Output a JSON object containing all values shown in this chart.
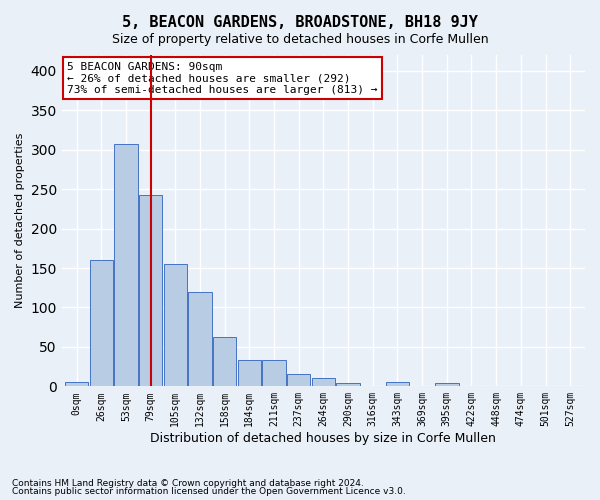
{
  "title": "5, BEACON GARDENS, BROADSTONE, BH18 9JY",
  "subtitle": "Size of property relative to detached houses in Corfe Mullen",
  "xlabel": "Distribution of detached houses by size in Corfe Mullen",
  "ylabel": "Number of detached properties",
  "footnote1": "Contains HM Land Registry data © Crown copyright and database right 2024.",
  "footnote2": "Contains public sector information licensed under the Open Government Licence v3.0.",
  "bin_labels": [
    "0sqm",
    "26sqm",
    "53sqm",
    "79sqm",
    "105sqm",
    "132sqm",
    "158sqm",
    "184sqm",
    "211sqm",
    "237sqm",
    "264sqm",
    "290sqm",
    "316sqm",
    "343sqm",
    "369sqm",
    "395sqm",
    "422sqm",
    "448sqm",
    "474sqm",
    "501sqm",
    "527sqm"
  ],
  "bar_values": [
    5,
    160,
    307,
    243,
    155,
    120,
    63,
    33,
    33,
    16,
    10,
    4,
    0,
    5,
    0,
    4,
    0,
    0,
    0,
    0,
    0
  ],
  "bar_color": "#b8cce4",
  "bar_edge_color": "#4472c4",
  "ylim": [
    0,
    420
  ],
  "yticks": [
    0,
    50,
    100,
    150,
    200,
    250,
    300,
    350,
    400
  ],
  "property_bin_index": 3,
  "annotation_title": "5 BEACON GARDENS: 90sqm",
  "annotation_line1": "← 26% of detached houses are smaller (292)",
  "annotation_line2": "73% of semi-detached houses are larger (813) →",
  "vline_color": "#cc0000",
  "annotation_box_color": "#ffffff",
  "annotation_box_edge": "#cc0000",
  "background_color": "#eaf0f8",
  "grid_color": "#ffffff"
}
